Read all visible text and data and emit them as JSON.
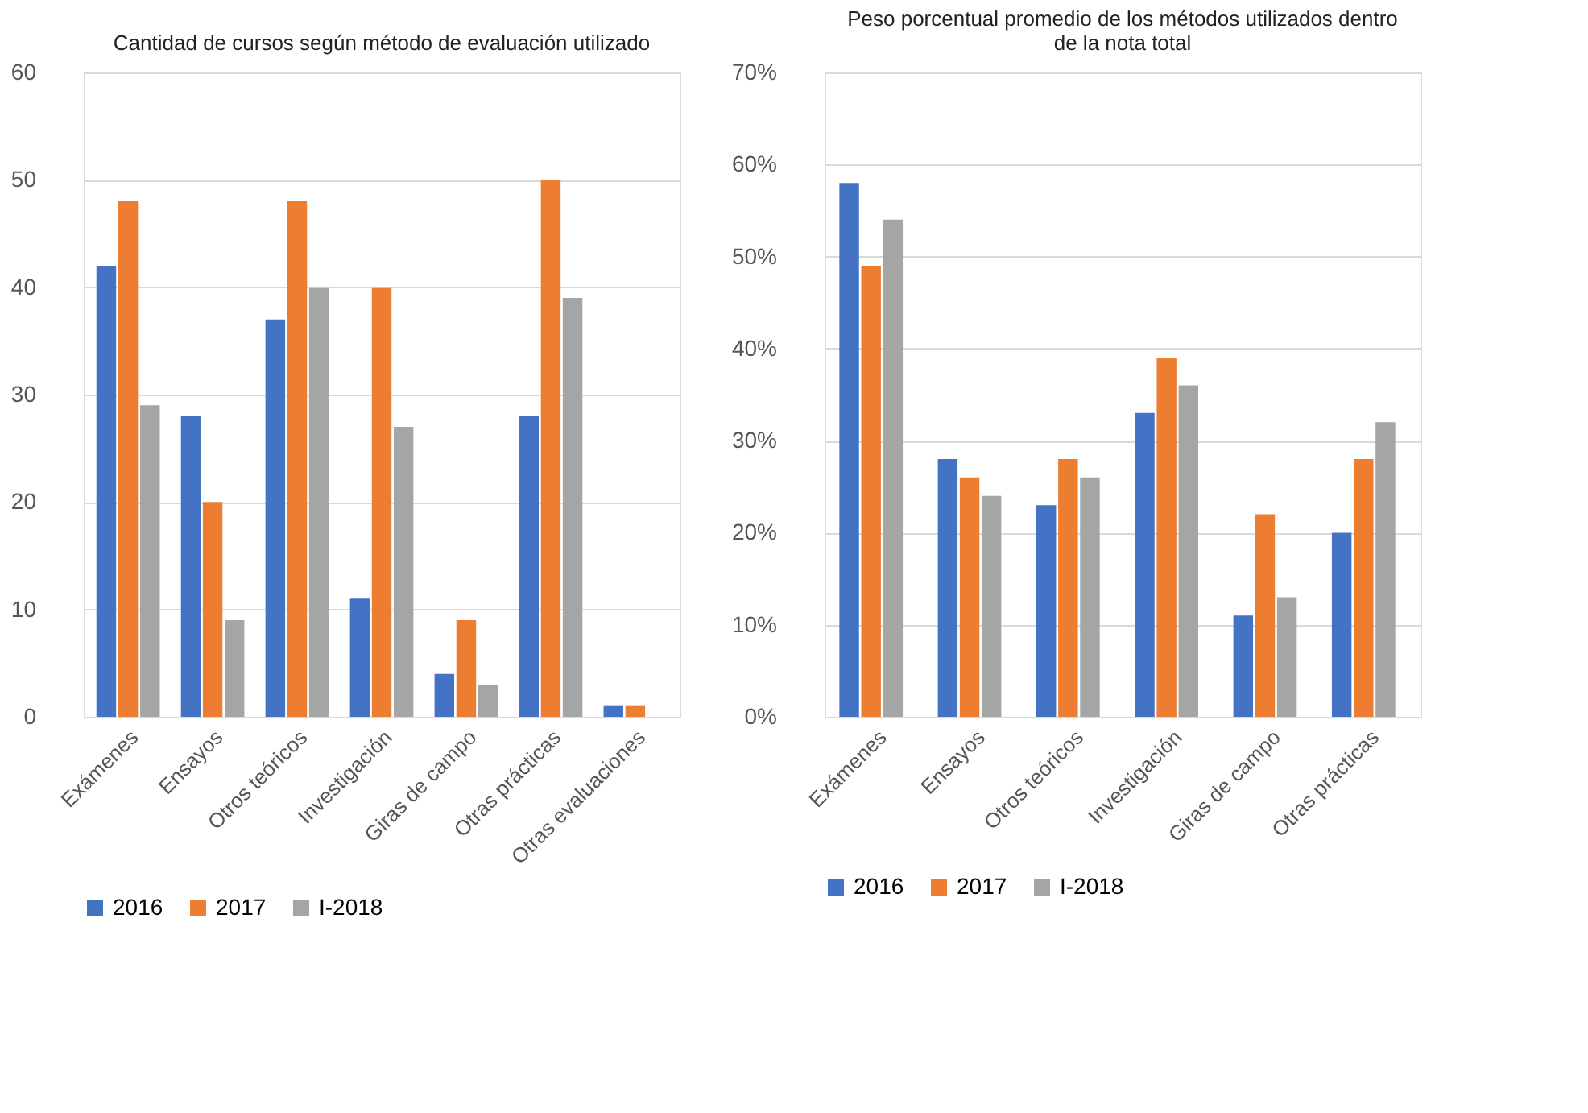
{
  "chart_data": [
    {
      "type": "bar",
      "title": "Cantidad de cursos según método de evaluación utilizado",
      "categories": [
        "Exámenes",
        "Ensayos",
        "Otros teóricos",
        "Investigación",
        "Giras de campo",
        "Otras prácticas",
        "Otras evaluaciones"
      ],
      "series": [
        {
          "name": "2016",
          "color": "#4472c4",
          "values": [
            42,
            28,
            37,
            11,
            4,
            28,
            1
          ]
        },
        {
          "name": "2017",
          "color": "#ed7d31",
          "values": [
            48,
            20,
            48,
            40,
            9,
            50,
            1
          ]
        },
        {
          "name": "I-2018",
          "color": "#a5a5a5",
          "values": [
            29,
            9,
            40,
            27,
            3,
            39,
            null
          ]
        }
      ],
      "ylim": [
        0,
        60
      ],
      "yticks": [
        0,
        10,
        20,
        30,
        40,
        50,
        60
      ],
      "grid": "y",
      "legend": "bottom"
    },
    {
      "type": "bar",
      "title": "Peso porcentual promedio de los métodos utilizados dentro de la nota total",
      "categories": [
        "Exámenes",
        "Ensayos",
        "Otros teóricos",
        "Investigación",
        "Giras de campo",
        "Otras prácticas"
      ],
      "series": [
        {
          "name": "2016",
          "color": "#4472c4",
          "values": [
            58,
            28,
            23,
            33,
            11,
            20
          ]
        },
        {
          "name": "2017",
          "color": "#ed7d31",
          "values": [
            49,
            26,
            28,
            39,
            22,
            28
          ]
        },
        {
          "name": "I-2018",
          "color": "#a5a5a5",
          "values": [
            54,
            24,
            26,
            36,
            13,
            32
          ]
        }
      ],
      "ylim": [
        0,
        70
      ],
      "yticks": [
        {
          "value": 0,
          "label": "0%"
        },
        {
          "value": 10,
          "label": "10%"
        },
        {
          "value": 20,
          "label": "20%"
        },
        {
          "value": 30,
          "label": "30%"
        },
        {
          "value": 40,
          "label": "40%"
        },
        {
          "value": 50,
          "label": "50%"
        },
        {
          "value": 60,
          "label": "60%"
        },
        {
          "value": 70,
          "label": "70%"
        }
      ],
      "grid": "y",
      "legend": "bottom"
    }
  ]
}
